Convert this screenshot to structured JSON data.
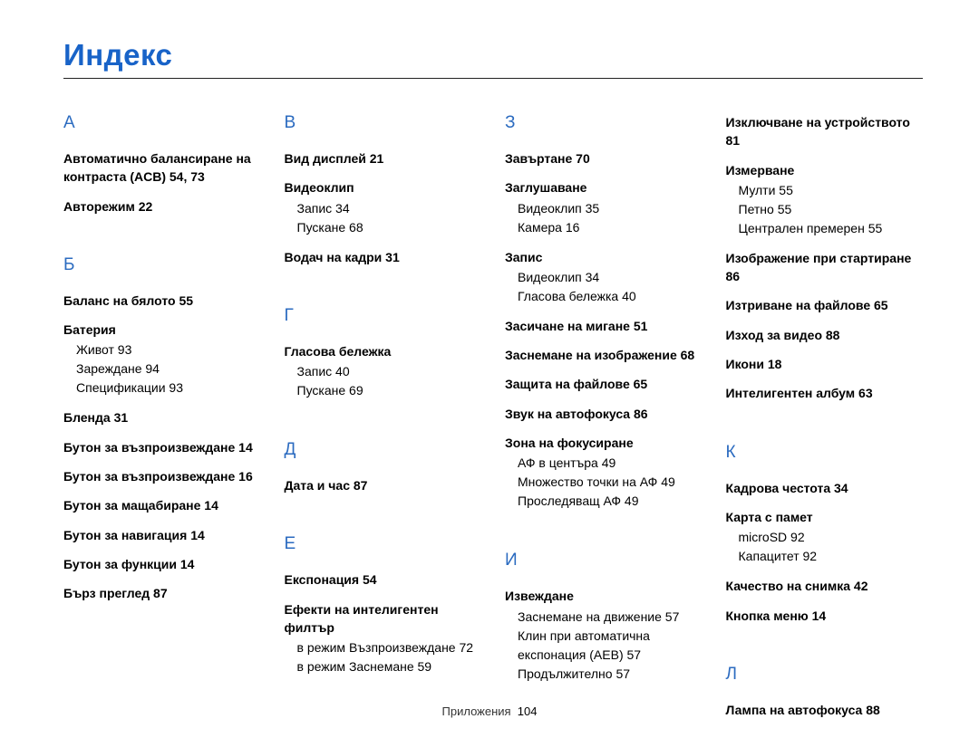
{
  "title": "Индекс",
  "footer_label": "Приложения",
  "footer_page": "104",
  "columns": [
    {
      "blocks": [
        {
          "t": "letter",
          "v": "А"
        },
        {
          "t": "b",
          "v": "Автоматично балансиране на контраста (ACB)  54, 73"
        },
        {
          "t": "b",
          "v": "Авторежим  22"
        },
        {
          "t": "spacer"
        },
        {
          "t": "letter",
          "v": "Б"
        },
        {
          "t": "b",
          "v": "Баланс на бялото  55"
        },
        {
          "t": "b",
          "v": "Батерия"
        },
        {
          "t": "s",
          "v": "Живот  93"
        },
        {
          "t": "s",
          "v": "Зареждане  94"
        },
        {
          "t": "s",
          "v": "Спецификации  93"
        },
        {
          "t": "b",
          "v": "Бленда  31"
        },
        {
          "t": "b",
          "v": "Бутон за възпроизвеждане  14"
        },
        {
          "t": "b",
          "v": "Бутон за възпроизвеждане  16"
        },
        {
          "t": "b",
          "v": "Бутон за мащабиране  14"
        },
        {
          "t": "b",
          "v": "Бутон за навигация  14"
        },
        {
          "t": "b",
          "v": "Бутон за функции  14"
        },
        {
          "t": "b",
          "v": "Бърз преглед  87"
        }
      ]
    },
    {
      "blocks": [
        {
          "t": "letter",
          "v": "В"
        },
        {
          "t": "b",
          "v": "Вид дисплей  21"
        },
        {
          "t": "b",
          "v": "Видеоклип"
        },
        {
          "t": "s",
          "v": "Запис  34"
        },
        {
          "t": "s",
          "v": "Пускане  68"
        },
        {
          "t": "b",
          "v": "Водач на кадри  31"
        },
        {
          "t": "spacer"
        },
        {
          "t": "letter",
          "v": "Г"
        },
        {
          "t": "b",
          "v": "Гласова бележка"
        },
        {
          "t": "s",
          "v": "Запис  40"
        },
        {
          "t": "s",
          "v": "Пускане  69"
        },
        {
          "t": "spacer"
        },
        {
          "t": "letter",
          "v": "Д"
        },
        {
          "t": "b",
          "v": "Дата и час  87"
        },
        {
          "t": "spacer"
        },
        {
          "t": "letter",
          "v": "Е"
        },
        {
          "t": "b",
          "v": "Експонация  54"
        },
        {
          "t": "b",
          "v": "Ефекти на интелигентен филтър"
        },
        {
          "t": "s",
          "v": "в режим Възпроизвеждане  72"
        },
        {
          "t": "s",
          "v": "в режим Заснемане  59"
        }
      ]
    },
    {
      "blocks": [
        {
          "t": "letter",
          "v": "З"
        },
        {
          "t": "b",
          "v": "Завъртане  70"
        },
        {
          "t": "b",
          "v": "Заглушаване"
        },
        {
          "t": "s",
          "v": "Видеоклип  35"
        },
        {
          "t": "s",
          "v": "Камера  16"
        },
        {
          "t": "b",
          "v": "Запис"
        },
        {
          "t": "s",
          "v": "Видеоклип  34"
        },
        {
          "t": "s",
          "v": "Гласова бележка  40"
        },
        {
          "t": "b",
          "v": "Засичане на мигане  51"
        },
        {
          "t": "b",
          "v": "Заснемане на изображение  68"
        },
        {
          "t": "b",
          "v": "Защита на файлове  65"
        },
        {
          "t": "b",
          "v": "Звук на автофокуса  86"
        },
        {
          "t": "b",
          "v": "Зона на фокусиране"
        },
        {
          "t": "s",
          "v": "АФ в центъра  49"
        },
        {
          "t": "s",
          "v": "Множество точки на АФ  49"
        },
        {
          "t": "s",
          "v": "Проследяващ АФ  49"
        },
        {
          "t": "spacer"
        },
        {
          "t": "letter",
          "v": "И"
        },
        {
          "t": "b",
          "v": "Извеждане"
        },
        {
          "t": "s",
          "v": "Заснемане на движение  57"
        },
        {
          "t": "s",
          "v": "Клин при автоматична експонация (AEB)  57"
        },
        {
          "t": "s",
          "v": "Продължително  57"
        }
      ]
    },
    {
      "blocks": [
        {
          "t": "b",
          "v": "Изключване на устройството  81"
        },
        {
          "t": "b",
          "v": "Измерване"
        },
        {
          "t": "s",
          "v": "Мулти  55"
        },
        {
          "t": "s",
          "v": "Петно  55"
        },
        {
          "t": "s",
          "v": "Централен премерен  55"
        },
        {
          "t": "b",
          "v": "Изображение при стартиране  86"
        },
        {
          "t": "b",
          "v": "Изтриване на файлове  65"
        },
        {
          "t": "b",
          "v": "Изход за видео  88"
        },
        {
          "t": "b",
          "v": "Икони  18"
        },
        {
          "t": "b",
          "v": "Интелигентен албум  63"
        },
        {
          "t": "spacer"
        },
        {
          "t": "letter",
          "v": "К"
        },
        {
          "t": "b",
          "v": "Кадрова честота  34"
        },
        {
          "t": "b",
          "v": "Карта с памет"
        },
        {
          "t": "s",
          "v": "microSD  92"
        },
        {
          "t": "s",
          "v": "Капацитет  92"
        },
        {
          "t": "b",
          "v": "Качество на снимка  42"
        },
        {
          "t": "b",
          "v": "Кнопка меню  14"
        },
        {
          "t": "spacer"
        },
        {
          "t": "letter",
          "v": "Л"
        },
        {
          "t": "b",
          "v": "Лампа на автофокуса  88"
        }
      ]
    }
  ]
}
